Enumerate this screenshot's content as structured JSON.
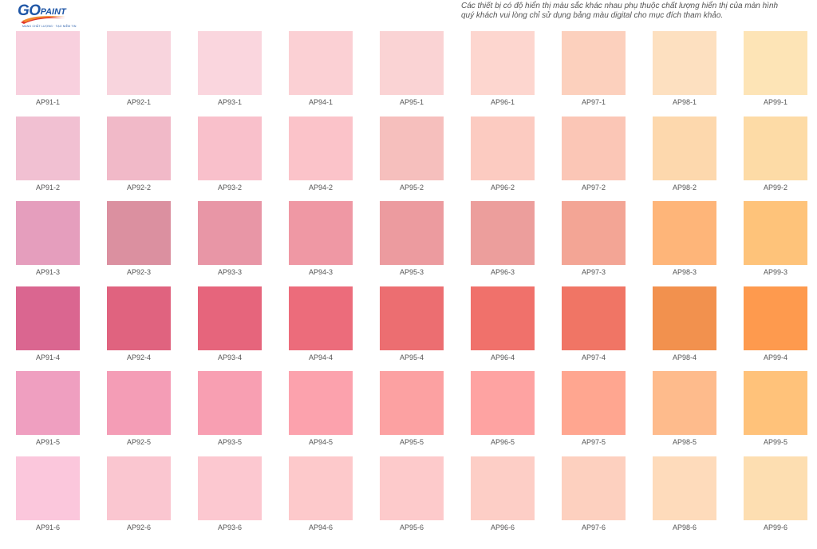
{
  "logo": {
    "text_main": "GO",
    "text_small": "PAINT",
    "tagline": "MANG CHẤT LƯỢNG · TẠO NIỀM TIN",
    "colors": {
      "primary": "#1f56a6",
      "swoosh_orange": "#f28a2e",
      "swoosh_red": "#e2342d"
    }
  },
  "disclaimer": {
    "line1": "Các thiết bị có độ hiển thị màu sắc khác nhau phụ thuộc chất lượng hiển thị của màn hình",
    "line2": "quý khách vui lòng chỉ sử dụng bảng màu digital cho mục đích tham khảo."
  },
  "swatches": [
    {
      "code": "AP91-1",
      "color": "#f8d0de"
    },
    {
      "code": "AP92-1",
      "color": "#f8d4dd"
    },
    {
      "code": "AP93-1",
      "color": "#fad6de"
    },
    {
      "code": "AP94-1",
      "color": "#fbd0d4"
    },
    {
      "code": "AP95-1",
      "color": "#fad3d4"
    },
    {
      "code": "AP96-1",
      "color": "#fdd6cf"
    },
    {
      "code": "AP97-1",
      "color": "#fcd0bd"
    },
    {
      "code": "AP98-1",
      "color": "#fde0c0"
    },
    {
      "code": "AP99-1",
      "color": "#fde4b6"
    },
    {
      "code": "AP91-2",
      "color": "#f1c0d2"
    },
    {
      "code": "AP92-2",
      "color": "#f1b9c8"
    },
    {
      "code": "AP93-2",
      "color": "#f9c0cb"
    },
    {
      "code": "AP94-2",
      "color": "#fbc3c9"
    },
    {
      "code": "AP95-2",
      "color": "#f6bfbd"
    },
    {
      "code": "AP96-2",
      "color": "#fccbc1"
    },
    {
      "code": "AP97-2",
      "color": "#fbc6b6"
    },
    {
      "code": "AP98-2",
      "color": "#fdd8ad"
    },
    {
      "code": "AP99-2",
      "color": "#fddba6"
    },
    {
      "code": "AP91-3",
      "color": "#e59ebd"
    },
    {
      "code": "AP92-3",
      "color": "#db90a0"
    },
    {
      "code": "AP93-3",
      "color": "#e896a6"
    },
    {
      "code": "AP94-3",
      "color": "#ef98a4"
    },
    {
      "code": "AP95-3",
      "color": "#ec9b9f"
    },
    {
      "code": "AP96-3",
      "color": "#ec9e9c"
    },
    {
      "code": "AP97-3",
      "color": "#f3a595"
    },
    {
      "code": "AP98-3",
      "color": "#feb579"
    },
    {
      "code": "AP99-3",
      "color": "#fec37a"
    },
    {
      "code": "AP91-4",
      "color": "#da6690"
    },
    {
      "code": "AP92-4",
      "color": "#e0637f"
    },
    {
      "code": "AP93-4",
      "color": "#e6657c"
    },
    {
      "code": "AP94-4",
      "color": "#ec6c7b"
    },
    {
      "code": "AP95-4",
      "color": "#ec6e71"
    },
    {
      "code": "AP96-4",
      "color": "#f0716b"
    },
    {
      "code": "AP97-4",
      "color": "#f07565"
    },
    {
      "code": "AP98-4",
      "color": "#f2914e"
    },
    {
      "code": "AP99-4",
      "color": "#fe9a4e"
    },
    {
      "code": "AP91-5",
      "color": "#ef9fc0"
    },
    {
      "code": "AP92-5",
      "color": "#f49db6"
    },
    {
      "code": "AP93-5",
      "color": "#f89fb2"
    },
    {
      "code": "AP94-5",
      "color": "#fca2ad"
    },
    {
      "code": "AP95-5",
      "color": "#fca1a2"
    },
    {
      "code": "AP96-5",
      "color": "#fea3a2"
    },
    {
      "code": "AP97-5",
      "color": "#ffa690"
    },
    {
      "code": "AP98-5",
      "color": "#febb8c"
    },
    {
      "code": "AP99-5",
      "color": "#ffc27a"
    },
    {
      "code": "AP91-6",
      "color": "#fbc7dc"
    },
    {
      "code": "AP92-6",
      "color": "#fac6d0"
    },
    {
      "code": "AP93-6",
      "color": "#fcc8d0"
    },
    {
      "code": "AP94-6",
      "color": "#fdc9cb"
    },
    {
      "code": "AP95-6",
      "color": "#fdcacb"
    },
    {
      "code": "AP96-6",
      "color": "#fdcec6"
    },
    {
      "code": "AP97-6",
      "color": "#fdd0bf"
    },
    {
      "code": "AP98-6",
      "color": "#fedbbb"
    },
    {
      "code": "AP99-6",
      "color": "#fddeb1"
    }
  ]
}
